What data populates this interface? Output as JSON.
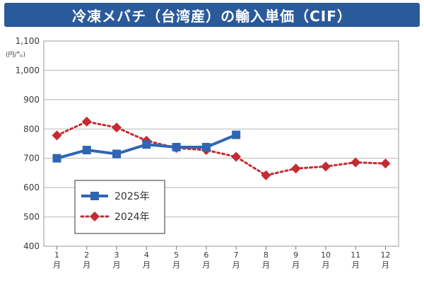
{
  "chart_data": {
    "type": "line",
    "title": "冷凍メバチ（台湾産）の輸入単価（CIF）",
    "ylabel": "(円/㌔)",
    "xlabel": "",
    "categories": [
      "1月",
      "2月",
      "3月",
      "4月",
      "5月",
      "6月",
      "7月",
      "8月",
      "9月",
      "10月",
      "11月",
      "12月"
    ],
    "x_tick_numbers": [
      "1",
      "2",
      "3",
      "4",
      "5",
      "6",
      "7",
      "8",
      "9",
      "10",
      "11",
      "12"
    ],
    "x_tick_unit": "月",
    "ylim": [
      400,
      1100
    ],
    "yticks": [
      400,
      500,
      600,
      700,
      800,
      900,
      1000,
      1100
    ],
    "ytick_labels": [
      "400",
      "500",
      "600",
      "700",
      "800",
      "900",
      "1,000",
      "1,100"
    ],
    "grid": true,
    "legend_position": "bottom-left",
    "series": [
      {
        "name": "2025年",
        "values": [
          700,
          728,
          715,
          747,
          738,
          738,
          780,
          null,
          null,
          null,
          null,
          null
        ],
        "color": "#2f66b3",
        "line_style": "solid",
        "marker": "square"
      },
      {
        "name": "2024年",
        "values": [
          778,
          825,
          805,
          760,
          735,
          728,
          705,
          642,
          665,
          672,
          686,
          682
        ],
        "color": "#c42b32",
        "line_style": "dotted",
        "marker": "diamond"
      }
    ]
  }
}
